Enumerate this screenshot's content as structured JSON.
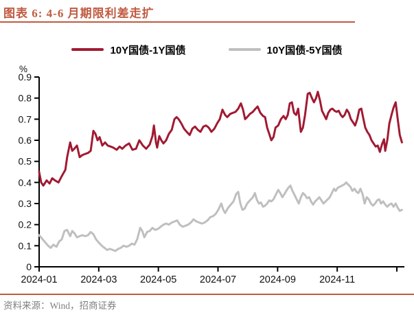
{
  "header": {
    "title": "图表 6: 4-6 月期限利差走扩"
  },
  "footer": {
    "source_text": "资料来源：Wind，招商证券"
  },
  "theme": {
    "accent_color": "#C05A40",
    "axis_color": "#000000",
    "tick_label_color": "#111111",
    "footer_text_color": "#7F7F7F",
    "background_color": "#FFFFFF"
  },
  "chart_data": {
    "type": "line",
    "title": "图表 6: 4-6 月期限利差走扩",
    "xlabel": "",
    "ylabel": "%",
    "ylim": [
      0,
      0.9
    ],
    "y_ticks": [
      "0",
      "0.1",
      "0.2",
      "0.3",
      "0.4",
      "0.5",
      "0.6",
      "0.7",
      "0.8",
      "0.9"
    ],
    "x_unit": "months since 2024-01-01",
    "xlim": [
      0,
      12.2
    ],
    "x_ticks": [
      {
        "pos": 0,
        "label": "2024-01"
      },
      {
        "pos": 2,
        "label": "2024-03"
      },
      {
        "pos": 4,
        "label": "2024-05"
      },
      {
        "pos": 6,
        "label": "2024-07"
      },
      {
        "pos": 8,
        "label": "2024-09"
      },
      {
        "pos": 10,
        "label": "2024-11"
      },
      {
        "pos": 12,
        "label": ""
      }
    ],
    "grid": false,
    "legend_position": "top-center",
    "series": [
      {
        "name": "10Y国债-1Y国债",
        "color": "#A11A32",
        "x": [
          0,
          0.07,
          0.14,
          0.25,
          0.35,
          0.44,
          0.53,
          0.65,
          0.76,
          0.88,
          0.94,
          1.04,
          1.11,
          1.18,
          1.27,
          1.36,
          1.45,
          1.54,
          1.64,
          1.73,
          1.82,
          1.89,
          1.96,
          2.03,
          2.12,
          2.21,
          2.3,
          2.4,
          2.49,
          2.6,
          2.7,
          2.79,
          2.9,
          3.02,
          3.13,
          3.25,
          3.36,
          3.48,
          3.59,
          3.71,
          3.8,
          3.85,
          3.92,
          3.96,
          4.03,
          4.1,
          4.17,
          4.26,
          4.35,
          4.45,
          4.54,
          4.61,
          4.68,
          4.77,
          4.86,
          4.95,
          5.05,
          5.14,
          5.23,
          5.32,
          5.41,
          5.51,
          5.6,
          5.69,
          5.78,
          5.88,
          5.97,
          6.06,
          6.15,
          6.24,
          6.31,
          6.41,
          6.5,
          6.59,
          6.68,
          6.77,
          6.84,
          6.91,
          6.98,
          7.07,
          7.17,
          7.26,
          7.33,
          7.42,
          7.51,
          7.58,
          7.65,
          7.72,
          7.79,
          7.86,
          7.93,
          8.02,
          8.11,
          8.2,
          8.27,
          8.34,
          8.41,
          8.48,
          8.55,
          8.62,
          8.69,
          8.78,
          8.85,
          8.92,
          9.01,
          9.08,
          9.15,
          9.22,
          9.29,
          9.35,
          9.42,
          9.49,
          9.56,
          9.63,
          9.7,
          9.77,
          9.84,
          9.91,
          9.98,
          10.05,
          10.12,
          10.18,
          10.25,
          10.32,
          10.39,
          10.46,
          10.53,
          10.6,
          10.67,
          10.74,
          10.81,
          10.88,
          10.94,
          11.01,
          11.08,
          11.15,
          11.22,
          11.29,
          11.36,
          11.43,
          11.5,
          11.57,
          11.61,
          11.68,
          11.75,
          11.82,
          11.89,
          11.96,
          12.03,
          12.1,
          12.17
        ],
        "y": [
          0.45,
          0.4,
          0.385,
          0.41,
          0.395,
          0.42,
          0.41,
          0.4,
          0.43,
          0.46,
          0.52,
          0.59,
          0.55,
          0.56,
          0.575,
          0.52,
          0.53,
          0.535,
          0.54,
          0.55,
          0.645,
          0.63,
          0.6,
          0.615,
          0.575,
          0.59,
          0.575,
          0.57,
          0.565,
          0.555,
          0.57,
          0.56,
          0.575,
          0.585,
          0.555,
          0.56,
          0.6,
          0.575,
          0.56,
          0.58,
          0.62,
          0.67,
          0.59,
          0.565,
          0.62,
          0.6,
          0.585,
          0.6,
          0.63,
          0.65,
          0.7,
          0.71,
          0.7,
          0.68,
          0.655,
          0.64,
          0.625,
          0.655,
          0.665,
          0.65,
          0.64,
          0.665,
          0.67,
          0.66,
          0.64,
          0.655,
          0.68,
          0.7,
          0.745,
          0.72,
          0.71,
          0.725,
          0.73,
          0.735,
          0.75,
          0.775,
          0.745,
          0.7,
          0.71,
          0.725,
          0.735,
          0.75,
          0.76,
          0.73,
          0.715,
          0.71,
          0.66,
          0.63,
          0.6,
          0.615,
          0.66,
          0.67,
          0.7,
          0.715,
          0.7,
          0.72,
          0.775,
          0.78,
          0.73,
          0.72,
          0.75,
          0.64,
          0.66,
          0.72,
          0.82,
          0.825,
          0.8,
          0.78,
          0.8,
          0.83,
          0.79,
          0.74,
          0.72,
          0.7,
          0.73,
          0.745,
          0.75,
          0.74,
          0.735,
          0.74,
          0.72,
          0.71,
          0.72,
          0.745,
          0.73,
          0.7,
          0.685,
          0.67,
          0.7,
          0.745,
          0.75,
          0.7,
          0.66,
          0.64,
          0.625,
          0.6,
          0.585,
          0.57,
          0.575,
          0.545,
          0.58,
          0.605,
          0.55,
          0.6,
          0.68,
          0.72,
          0.755,
          0.78,
          0.7,
          0.625,
          0.59
        ]
      },
      {
        "name": "10Y国债-5Y国债",
        "color": "#BFBFBF",
        "x": [
          0,
          0.09,
          0.18,
          0.3,
          0.39,
          0.48,
          0.58,
          0.67,
          0.76,
          0.85,
          0.94,
          1.04,
          1.11,
          1.18,
          1.27,
          1.36,
          1.45,
          1.54,
          1.64,
          1.73,
          1.82,
          1.91,
          2.0,
          2.1,
          2.19,
          2.28,
          2.37,
          2.47,
          2.56,
          2.65,
          2.74,
          2.83,
          2.93,
          3.02,
          3.11,
          3.2,
          3.29,
          3.39,
          3.46,
          3.53,
          3.62,
          3.71,
          3.8,
          3.89,
          3.99,
          4.08,
          4.17,
          4.26,
          4.35,
          4.45,
          4.54,
          4.63,
          4.72,
          4.82,
          4.91,
          5.0,
          5.09,
          5.18,
          5.28,
          5.37,
          5.46,
          5.55,
          5.65,
          5.74,
          5.83,
          5.92,
          6.01,
          6.11,
          6.18,
          6.24,
          6.34,
          6.43,
          6.52,
          6.61,
          6.68,
          6.75,
          6.82,
          6.89,
          6.98,
          7.07,
          7.17,
          7.24,
          7.3,
          7.37,
          7.44,
          7.51,
          7.58,
          7.65,
          7.72,
          7.79,
          7.86,
          7.95,
          8.02,
          8.09,
          8.16,
          8.23,
          8.29,
          8.36,
          8.43,
          8.5,
          8.57,
          8.64,
          8.71,
          8.78,
          8.85,
          8.92,
          8.99,
          9.06,
          9.12,
          9.19,
          9.26,
          9.33,
          9.4,
          9.47,
          9.54,
          9.61,
          9.68,
          9.75,
          9.82,
          9.89,
          9.95,
          10.02,
          10.09,
          10.16,
          10.23,
          10.3,
          10.37,
          10.44,
          10.51,
          10.58,
          10.65,
          10.71,
          10.78,
          10.85,
          10.92,
          10.99,
          11.06,
          11.13,
          11.2,
          11.27,
          11.34,
          11.41,
          11.47,
          11.54,
          11.61,
          11.68,
          11.75,
          11.82,
          11.89,
          11.96,
          12.03,
          12.1,
          12.17
        ],
        "y": [
          0.15,
          0.135,
          0.12,
          0.1,
          0.09,
          0.105,
          0.095,
          0.12,
          0.13,
          0.17,
          0.175,
          0.145,
          0.17,
          0.16,
          0.14,
          0.145,
          0.15,
          0.145,
          0.15,
          0.165,
          0.155,
          0.13,
          0.115,
          0.1,
          0.09,
          0.08,
          0.085,
          0.08,
          0.075,
          0.085,
          0.09,
          0.1,
          0.095,
          0.1,
          0.11,
          0.105,
          0.13,
          0.185,
          0.17,
          0.14,
          0.165,
          0.17,
          0.185,
          0.175,
          0.18,
          0.19,
          0.2,
          0.205,
          0.2,
          0.21,
          0.215,
          0.22,
          0.2,
          0.19,
          0.195,
          0.2,
          0.21,
          0.225,
          0.215,
          0.21,
          0.205,
          0.21,
          0.22,
          0.235,
          0.24,
          0.25,
          0.27,
          0.3,
          0.27,
          0.255,
          0.28,
          0.295,
          0.31,
          0.345,
          0.355,
          0.3,
          0.27,
          0.275,
          0.3,
          0.315,
          0.33,
          0.35,
          0.32,
          0.3,
          0.305,
          0.285,
          0.29,
          0.3,
          0.315,
          0.31,
          0.32,
          0.345,
          0.365,
          0.35,
          0.33,
          0.345,
          0.36,
          0.375,
          0.385,
          0.36,
          0.34,
          0.32,
          0.3,
          0.33,
          0.35,
          0.34,
          0.325,
          0.33,
          0.31,
          0.295,
          0.31,
          0.32,
          0.33,
          0.315,
          0.3,
          0.31,
          0.32,
          0.33,
          0.35,
          0.37,
          0.36,
          0.375,
          0.38,
          0.385,
          0.39,
          0.4,
          0.39,
          0.38,
          0.36,
          0.37,
          0.355,
          0.35,
          0.37,
          0.345,
          0.3,
          0.33,
          0.32,
          0.3,
          0.29,
          0.3,
          0.315,
          0.32,
          0.3,
          0.31,
          0.295,
          0.285,
          0.295,
          0.3,
          0.285,
          0.3,
          0.28,
          0.265,
          0.27
        ]
      }
    ]
  }
}
